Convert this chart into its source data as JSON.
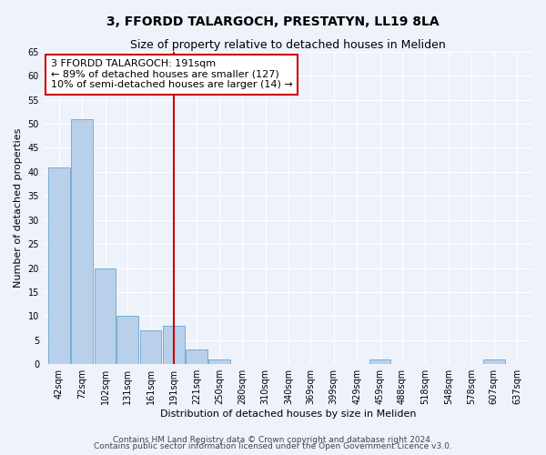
{
  "title": "3, FFORDD TALARGOCH, PRESTATYN, LL19 8LA",
  "subtitle": "Size of property relative to detached houses in Meliden",
  "xlabel": "Distribution of detached houses by size in Meliden",
  "ylabel": "Number of detached properties",
  "bins": [
    42,
    72,
    102,
    131,
    161,
    191,
    221,
    250,
    280,
    310,
    340,
    369,
    399,
    429,
    459,
    488,
    518,
    548,
    578,
    607,
    637
  ],
  "values": [
    41,
    51,
    20,
    10,
    7,
    8,
    3,
    1,
    0,
    0,
    0,
    0,
    0,
    0,
    1,
    0,
    0,
    0,
    0,
    1,
    0
  ],
  "bar_color": "#b8d0ea",
  "bar_edge_color": "#7aadd4",
  "vline_x": 191,
  "vline_color": "#cc0000",
  "annotation_text": "3 FFORDD TALARGOCH: 191sqm\n← 89% of detached houses are smaller (127)\n10% of semi-detached houses are larger (14) →",
  "annotation_box_color": "#ffffff",
  "annotation_box_edge_color": "#cc0000",
  "ylim": [
    0,
    65
  ],
  "yticks": [
    0,
    5,
    10,
    15,
    20,
    25,
    30,
    35,
    40,
    45,
    50,
    55,
    60,
    65
  ],
  "footnote1": "Contains HM Land Registry data © Crown copyright and database right 2024.",
  "footnote2": "Contains public sector information licensed under the Open Government Licence v3.0.",
  "bg_color": "#eef2fb",
  "grid_color": "#ffffff",
  "title_fontsize": 10,
  "subtitle_fontsize": 9,
  "label_fontsize": 8,
  "tick_fontsize": 7,
  "annotation_fontsize": 8,
  "footnote_fontsize": 6.5
}
